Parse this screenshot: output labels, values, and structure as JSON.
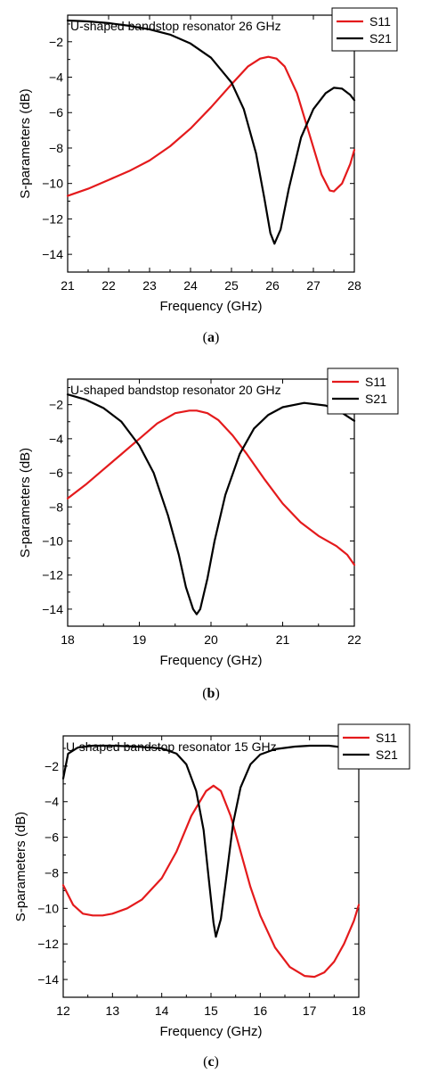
{
  "colors": {
    "s11": "#e41a1c",
    "s21": "#000000",
    "axis": "#000000",
    "background": "#ffffff"
  },
  "chart_data": [
    {
      "type": "line",
      "title": "U-shaped bandstop resonator 26 GHz",
      "xlabel": "Frequency (GHz)",
      "ylabel": "S-parameters (dB)",
      "caption": "a",
      "xlim": [
        21,
        28
      ],
      "ylim": [
        -15,
        -0.5
      ],
      "xticks": [
        21,
        22,
        23,
        24,
        25,
        26,
        27,
        28
      ],
      "yticks": [
        -14,
        -12,
        -10,
        -8,
        -6,
        -4,
        -2
      ],
      "grid": false,
      "legend": "top-right",
      "series": [
        {
          "name": "S11",
          "color": "#e41a1c",
          "x": [
            21,
            21.5,
            22,
            22.5,
            23,
            23.5,
            24,
            24.5,
            25,
            25.4,
            25.7,
            25.9,
            26.1,
            26.3,
            26.6,
            26.9,
            27.2,
            27.4,
            27.5,
            27.7,
            27.9,
            28
          ],
          "y": [
            -10.7,
            -10.3,
            -9.8,
            -9.3,
            -8.7,
            -7.9,
            -6.9,
            -5.7,
            -4.4,
            -3.4,
            -2.95,
            -2.85,
            -2.95,
            -3.4,
            -4.9,
            -7.2,
            -9.5,
            -10.4,
            -10.45,
            -10.0,
            -8.9,
            -8.1
          ]
        },
        {
          "name": "S21",
          "color": "#000000",
          "x": [
            21,
            21.5,
            22,
            22.5,
            23,
            23.5,
            24,
            24.5,
            25,
            25.3,
            25.6,
            25.8,
            25.95,
            26.05,
            26.2,
            26.4,
            26.7,
            27,
            27.3,
            27.5,
            27.7,
            27.9,
            28
          ],
          "y": [
            -0.8,
            -0.85,
            -0.95,
            -1.1,
            -1.3,
            -1.6,
            -2.1,
            -2.9,
            -4.3,
            -5.8,
            -8.3,
            -10.8,
            -12.8,
            -13.4,
            -12.6,
            -10.3,
            -7.4,
            -5.8,
            -4.9,
            -4.6,
            -4.65,
            -5.0,
            -5.3
          ]
        }
      ]
    },
    {
      "type": "line",
      "title": "U-shaped bandstop resonator 20 GHz",
      "xlabel": "Frequency (GHz)",
      "ylabel": "S-parameters (dB)",
      "caption": "b",
      "xlim": [
        18,
        22
      ],
      "ylim": [
        -15,
        -0.5
      ],
      "xticks": [
        18,
        19,
        20,
        21,
        22
      ],
      "yticks": [
        -14,
        -12,
        -10,
        -8,
        -6,
        -4,
        -2
      ],
      "grid": false,
      "legend": "top-right",
      "series": [
        {
          "name": "S11",
          "color": "#e41a1c",
          "x": [
            18,
            18.25,
            18.5,
            18.75,
            19,
            19.25,
            19.5,
            19.7,
            19.8,
            19.95,
            20.1,
            20.3,
            20.5,
            20.75,
            21,
            21.25,
            21.5,
            21.75,
            21.9,
            22
          ],
          "y": [
            -7.5,
            -6.7,
            -5.8,
            -4.9,
            -4.0,
            -3.1,
            -2.5,
            -2.35,
            -2.35,
            -2.5,
            -2.9,
            -3.8,
            -4.9,
            -6.4,
            -7.8,
            -8.9,
            -9.7,
            -10.3,
            -10.8,
            -11.4
          ]
        },
        {
          "name": "S21",
          "color": "#000000",
          "x": [
            18,
            18.25,
            18.5,
            18.75,
            19,
            19.2,
            19.4,
            19.55,
            19.65,
            19.75,
            19.8,
            19.85,
            19.95,
            20.05,
            20.2,
            20.4,
            20.6,
            20.8,
            21,
            21.3,
            21.6,
            21.8,
            22
          ],
          "y": [
            -1.4,
            -1.7,
            -2.2,
            -3.0,
            -4.4,
            -6.0,
            -8.5,
            -10.8,
            -12.7,
            -14.0,
            -14.3,
            -14.0,
            -12.2,
            -10.0,
            -7.3,
            -4.9,
            -3.4,
            -2.6,
            -2.15,
            -1.9,
            -2.05,
            -2.4,
            -2.95
          ]
        }
      ]
    },
    {
      "type": "line",
      "title": "U-shaped bandstop resonator 15 GHz",
      "xlabel": "Frequency (GHz)",
      "ylabel": "S-parameters (dB)",
      "caption": "c",
      "xlim": [
        12,
        18
      ],
      "ylim": [
        -15,
        -0.3
      ],
      "xticks": [
        12,
        13,
        14,
        15,
        16,
        17,
        18
      ],
      "yticks": [
        -14,
        -12,
        -10,
        -8,
        -6,
        -4,
        -2
      ],
      "grid": false,
      "legend": "top-right",
      "series": [
        {
          "name": "S11",
          "color": "#e41a1c",
          "x": [
            12,
            12.2,
            12.4,
            12.6,
            12.8,
            13,
            13.3,
            13.6,
            14,
            14.3,
            14.6,
            14.9,
            15.05,
            15.2,
            15.4,
            15.6,
            15.8,
            16,
            16.3,
            16.6,
            16.9,
            17.1,
            17.3,
            17.5,
            17.7,
            17.9,
            18
          ],
          "y": [
            -8.7,
            -9.8,
            -10.3,
            -10.4,
            -10.4,
            -10.3,
            -10.0,
            -9.5,
            -8.3,
            -6.8,
            -4.8,
            -3.4,
            -3.1,
            -3.4,
            -4.8,
            -6.8,
            -8.8,
            -10.4,
            -12.2,
            -13.3,
            -13.8,
            -13.85,
            -13.6,
            -13.0,
            -12.0,
            -10.7,
            -9.8
          ]
        },
        {
          "name": "S21",
          "color": "#000000",
          "x": [
            12,
            12.1,
            12.3,
            12.6,
            13,
            13.5,
            14,
            14.3,
            14.5,
            14.7,
            14.85,
            14.95,
            15.05,
            15.1,
            15.2,
            15.3,
            15.45,
            15.6,
            15.8,
            16,
            16.3,
            16.7,
            17,
            17.4,
            17.7,
            17.9,
            18
          ],
          "y": [
            -2.7,
            -1.3,
            -0.95,
            -0.85,
            -0.85,
            -0.9,
            -1.0,
            -1.3,
            -1.9,
            -3.4,
            -5.6,
            -8.2,
            -10.8,
            -11.6,
            -10.6,
            -8.5,
            -5.2,
            -3.2,
            -1.9,
            -1.35,
            -1.05,
            -0.9,
            -0.85,
            -0.85,
            -0.95,
            -1.2,
            -1.7
          ]
        }
      ]
    }
  ]
}
